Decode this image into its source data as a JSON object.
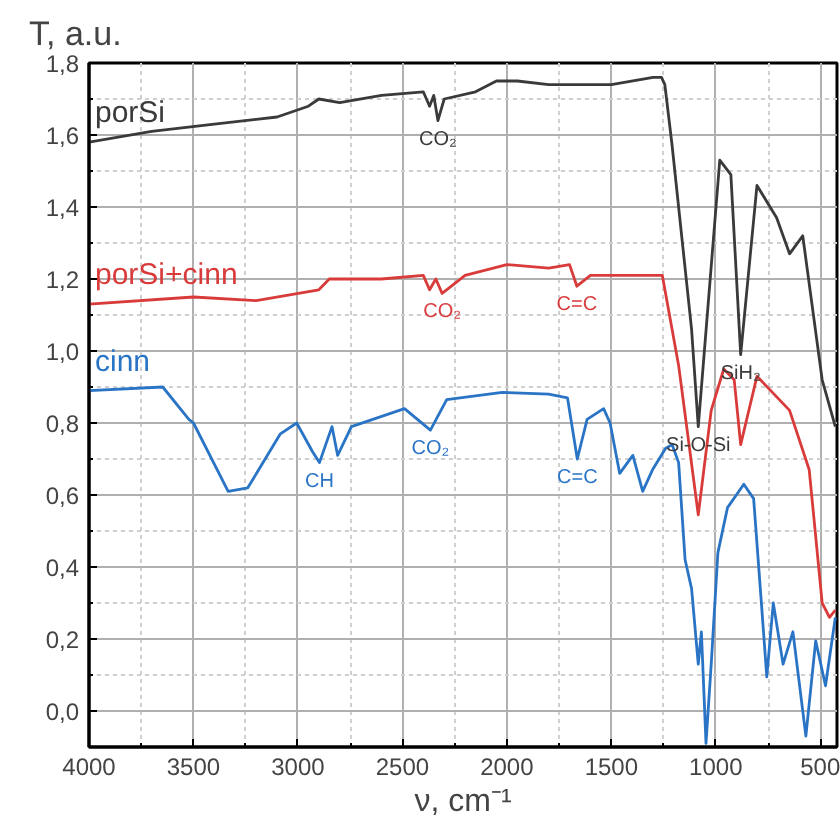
{
  "chart_data": {
    "type": "line",
    "ylabel": "T, a.u.",
    "xlabel": "ν, cm⁻¹",
    "xlim": [
      4000,
      420
    ],
    "ylim": [
      -0.1,
      1.8
    ],
    "xticks": [
      4000,
      3500,
      3000,
      2500,
      2000,
      1500,
      1000,
      500
    ],
    "yticks": [
      {
        "value": 0.0,
        "label": "0,0"
      },
      {
        "value": 0.2,
        "label": "0,2"
      },
      {
        "value": 0.4,
        "label": "0,4"
      },
      {
        "value": 0.6,
        "label": "0,6"
      },
      {
        "value": 0.8,
        "label": "0,8"
      },
      {
        "value": 1.0,
        "label": "1,0"
      },
      {
        "value": 1.2,
        "label": "1,2"
      },
      {
        "value": 1.4,
        "label": "1,4"
      },
      {
        "value": 1.6,
        "label": "1,6"
      },
      {
        "value": 1.8,
        "label": "1,8"
      }
    ],
    "grid": true,
    "marker": "none",
    "line_style": "solid",
    "series": [
      {
        "name": "porSi",
        "color": "#3a3a3a",
        "x": [
          4000,
          3700,
          3400,
          3100,
          2950,
          2900,
          2800,
          2600,
          2400,
          2370,
          2350,
          2330,
          2300,
          2150,
          2050,
          1950,
          1800,
          1650,
          1500,
          1300,
          1260,
          1244,
          1210,
          1116,
          1084,
          981,
          928,
          881,
          803,
          709,
          647,
          584,
          491,
          428
        ],
        "values": [
          1.58,
          1.61,
          1.63,
          1.65,
          1.68,
          1.7,
          1.69,
          1.71,
          1.72,
          1.68,
          1.71,
          1.64,
          1.7,
          1.72,
          1.75,
          1.75,
          1.74,
          1.74,
          1.74,
          1.76,
          1.76,
          1.74,
          1.575,
          1.06,
          0.79,
          1.53,
          1.49,
          0.99,
          1.46,
          1.37,
          1.27,
          1.32,
          0.92,
          0.79
        ]
      },
      {
        "name": "porSi+cinn",
        "color": "#d93b3b",
        "x": [
          4000,
          3500,
          3200,
          2900,
          2850,
          2600,
          2400,
          2370,
          2340,
          2310,
          2200,
          2000,
          1800,
          1700,
          1665,
          1600,
          1400,
          1256,
          1178,
          1084,
          1022,
          962,
          912,
          881,
          803,
          647,
          553,
          491,
          456,
          428
        ],
        "values": [
          1.13,
          1.15,
          1.14,
          1.17,
          1.2,
          1.2,
          1.21,
          1.17,
          1.2,
          1.16,
          1.21,
          1.24,
          1.23,
          1.24,
          1.18,
          1.21,
          1.21,
          1.21,
          0.96,
          0.545,
          0.835,
          0.95,
          0.92,
          0.74,
          0.93,
          0.835,
          0.67,
          0.3,
          0.26,
          0.28
        ]
      },
      {
        "name": "cinn",
        "color": "#2a74c6",
        "x": [
          4000,
          3647,
          3522,
          3500,
          3334,
          3240,
          3084,
          3006,
          2930,
          2897,
          2837,
          2810,
          2744,
          2490,
          2366,
          2288,
          2022,
          1800,
          1710,
          1663,
          1616,
          1537,
          1506,
          1460,
          1397,
          1350,
          1303,
          1240,
          1209,
          1178,
          1147,
          1116,
          1084,
          1069,
          1047,
          1022,
          990,
          944,
          866,
          819,
          787,
          756,
          725,
          678,
          631,
          569,
          522,
          475,
          428
        ],
        "values": [
          0.89,
          0.9,
          0.81,
          0.8,
          0.61,
          0.62,
          0.77,
          0.8,
          0.72,
          0.69,
          0.79,
          0.71,
          0.79,
          0.84,
          0.78,
          0.865,
          0.885,
          0.88,
          0.87,
          0.7,
          0.81,
          0.84,
          0.8,
          0.66,
          0.71,
          0.61,
          0.67,
          0.73,
          0.74,
          0.69,
          0.42,
          0.34,
          0.13,
          0.22,
          -0.09,
          0.13,
          0.44,
          0.565,
          0.63,
          0.59,
          0.34,
          0.095,
          0.3,
          0.13,
          0.22,
          -0.07,
          0.195,
          0.07,
          0.26
        ]
      }
    ],
    "annotations": [
      {
        "text": "CO₂",
        "x": 2330,
        "y": 1.64
      },
      {
        "text": "CO₂",
        "x": 2310,
        "y": 1.16
      },
      {
        "text": "C=C",
        "x": 1665,
        "y": 1.18
      },
      {
        "text": "CH",
        "x": 2897,
        "y": 0.69
      },
      {
        "text": "CO₂",
        "x": 2366,
        "y": 0.78
      },
      {
        "text": "C=C",
        "x": 1663,
        "y": 0.7
      },
      {
        "text": "Si-O-Si",
        "x": 1084,
        "y": 0.79
      },
      {
        "text": "SiH₂",
        "x": 881,
        "y": 0.99
      }
    ]
  }
}
